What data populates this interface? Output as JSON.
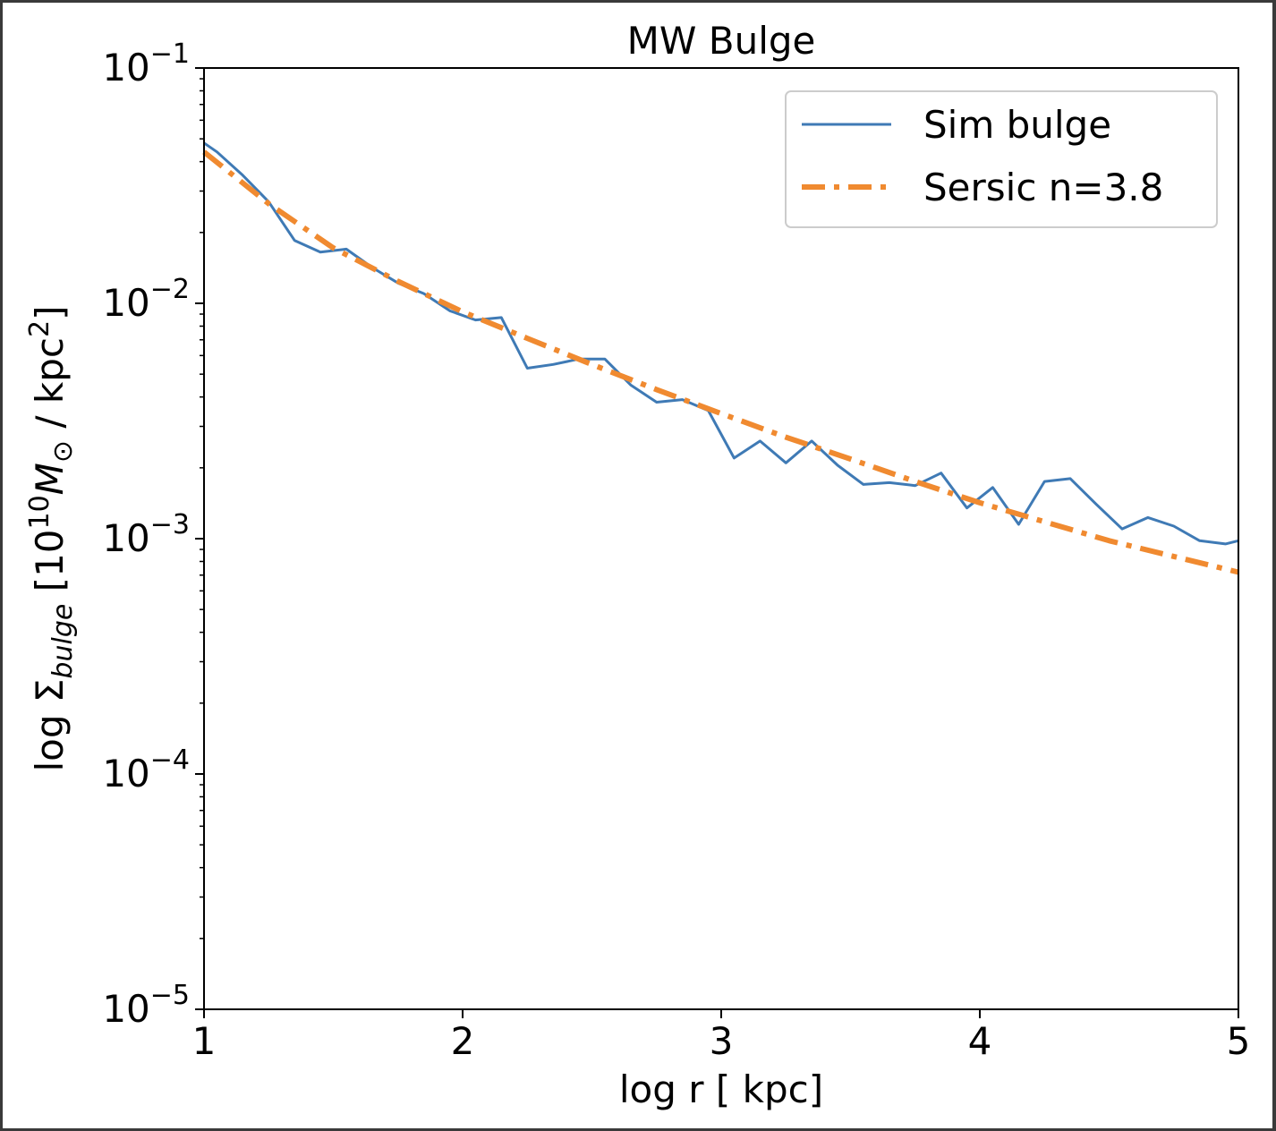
{
  "chart_data": {
    "type": "line",
    "title": "MW Bulge",
    "xlabel": "log r [ kpc]",
    "ylabel": {
      "prefix": "log Σ",
      "subscript": "bulge",
      "bracket_open": " [10",
      "power": "10",
      "mass": "M",
      "sun": "⊙",
      "unit": "  / kpc",
      "unit_power": "2",
      "bracket_close": "]"
    },
    "xlim": [
      1,
      5
    ],
    "ylim": [
      1e-05,
      0.1
    ],
    "yscale": "log",
    "grid": false,
    "legend_position": "upper right",
    "x_ticks": [
      "1",
      "2",
      "3",
      "4",
      "5"
    ],
    "y_ticks": [
      {
        "value": 0.1,
        "base": "10",
        "exp": "−1"
      },
      {
        "value": 0.01,
        "base": "10",
        "exp": "−2"
      },
      {
        "value": 0.001,
        "base": "10",
        "exp": "−3"
      },
      {
        "value": 0.0001,
        "base": "10",
        "exp": "−4"
      },
      {
        "value": 1e-05,
        "base": "10",
        "exp": "−5"
      }
    ],
    "series": [
      {
        "name": "Sim bulge",
        "color": "#3f7ab5",
        "style": "solid",
        "x": [
          1.0,
          1.05,
          1.15,
          1.25,
          1.35,
          1.45,
          1.55,
          1.65,
          1.75,
          1.85,
          1.95,
          2.05,
          2.1,
          2.15,
          2.25,
          2.35,
          2.45,
          2.55,
          2.65,
          2.75,
          2.85,
          2.95,
          3.05,
          3.15,
          3.25,
          3.35,
          3.45,
          3.55,
          3.65,
          3.75,
          3.85,
          3.95,
          4.05,
          4.15,
          4.25,
          4.35,
          4.45,
          4.55,
          4.65,
          4.75,
          4.85,
          4.95,
          5.0
        ],
        "y": [
          0.048,
          0.044,
          0.035,
          0.027,
          0.0185,
          0.0165,
          0.017,
          0.0142,
          0.0122,
          0.011,
          0.0093,
          0.0085,
          0.0086,
          0.0087,
          0.0053,
          0.0055,
          0.0058,
          0.0058,
          0.0045,
          0.0038,
          0.0039,
          0.0035,
          0.0022,
          0.0026,
          0.0021,
          0.0026,
          0.00205,
          0.0017,
          0.00173,
          0.00168,
          0.0019,
          0.00135,
          0.00165,
          0.00115,
          0.00175,
          0.0018,
          0.0014,
          0.0011,
          0.00123,
          0.00113,
          0.00098,
          0.00095,
          0.00098
        ]
      },
      {
        "name": "Sersic n=3.8",
        "color": "#f08a30",
        "style": "dashdot",
        "x": [
          1.0,
          1.25,
          1.5,
          1.75,
          2.0,
          2.25,
          2.5,
          2.75,
          3.0,
          3.25,
          3.5,
          3.75,
          4.0,
          4.25,
          4.5,
          4.75,
          5.0
        ],
        "y": [
          0.044,
          0.0265,
          0.0172,
          0.0124,
          0.0092,
          0.0071,
          0.0055,
          0.0043,
          0.0034,
          0.0027,
          0.00218,
          0.00175,
          0.00142,
          0.00118,
          0.00098,
          0.00084,
          0.00072
        ]
      }
    ]
  }
}
